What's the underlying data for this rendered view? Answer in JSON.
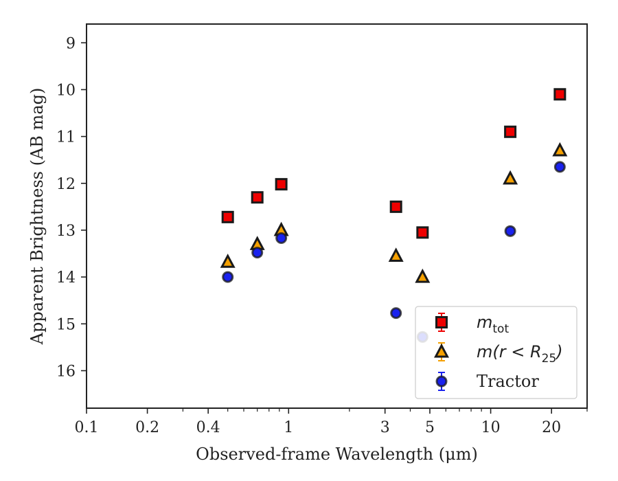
{
  "chart_data": {
    "type": "scatter",
    "xlabel": "Observed-frame Wavelength (μm)",
    "ylabel": "Apparent Brightness (AB mag)",
    "x_scale": "log",
    "xlim": [
      0.1,
      30
    ],
    "ylim": [
      16.8,
      8.6
    ],
    "y_inverted": true,
    "grid": false,
    "legend_position": "bottom-right",
    "x_ticks": [
      {
        "value": 0.1,
        "label": "0.1"
      },
      {
        "value": 0.2,
        "label": "0.2"
      },
      {
        "value": 0.4,
        "label": "0.4"
      },
      {
        "value": 1,
        "label": "1"
      },
      {
        "value": 3,
        "label": "3"
      },
      {
        "value": 5,
        "label": "5"
      },
      {
        "value": 10,
        "label": "10"
      },
      {
        "value": 20,
        "label": "20"
      }
    ],
    "y_ticks": [
      {
        "value": 9,
        "label": "9"
      },
      {
        "value": 10,
        "label": "10"
      },
      {
        "value": 11,
        "label": "11"
      },
      {
        "value": 12,
        "label": "12"
      },
      {
        "value": 13,
        "label": "13"
      },
      {
        "value": 14,
        "label": "14"
      },
      {
        "value": 15,
        "label": "15"
      },
      {
        "value": 16,
        "label": "16"
      }
    ],
    "series": [
      {
        "name": "m_tot",
        "marker": "square",
        "color": "#ee0000",
        "edge_color": "#1a1a1a",
        "errorbar_color": "#ee0000",
        "x": [
          0.5,
          0.7,
          0.92,
          3.4,
          4.6,
          12.5,
          22
        ],
        "y": [
          12.72,
          12.3,
          12.02,
          12.5,
          13.05,
          10.9,
          10.1
        ]
      },
      {
        "name": "m(r<R25)",
        "marker": "triangle",
        "color": "#f5a000",
        "edge_color": "#1a1a1a",
        "errorbar_color": "#f5a000",
        "x": [
          0.5,
          0.7,
          0.92,
          3.4,
          4.6,
          12.5,
          22
        ],
        "y": [
          13.68,
          13.3,
          13.0,
          13.55,
          14.0,
          11.9,
          11.3
        ]
      },
      {
        "name": "Tractor",
        "marker": "circle",
        "color": "#1a22ee",
        "edge_color": "#1a1a1a",
        "errorbar_color": "#1a22ee",
        "x": [
          0.5,
          0.7,
          0.92,
          3.4,
          4.6,
          12.5,
          22
        ],
        "y": [
          14.0,
          13.48,
          13.17,
          14.77,
          15.28,
          13.02,
          11.65
        ]
      }
    ],
    "legend": {
      "entries": [
        {
          "label": "m_tot",
          "base": "m",
          "sub": "tot"
        },
        {
          "label": "m(r<R25)",
          "base": "m(r < R",
          "sub": "25",
          "tail": ")"
        },
        {
          "label": "Tractor",
          "base": "Tractor"
        }
      ]
    }
  }
}
